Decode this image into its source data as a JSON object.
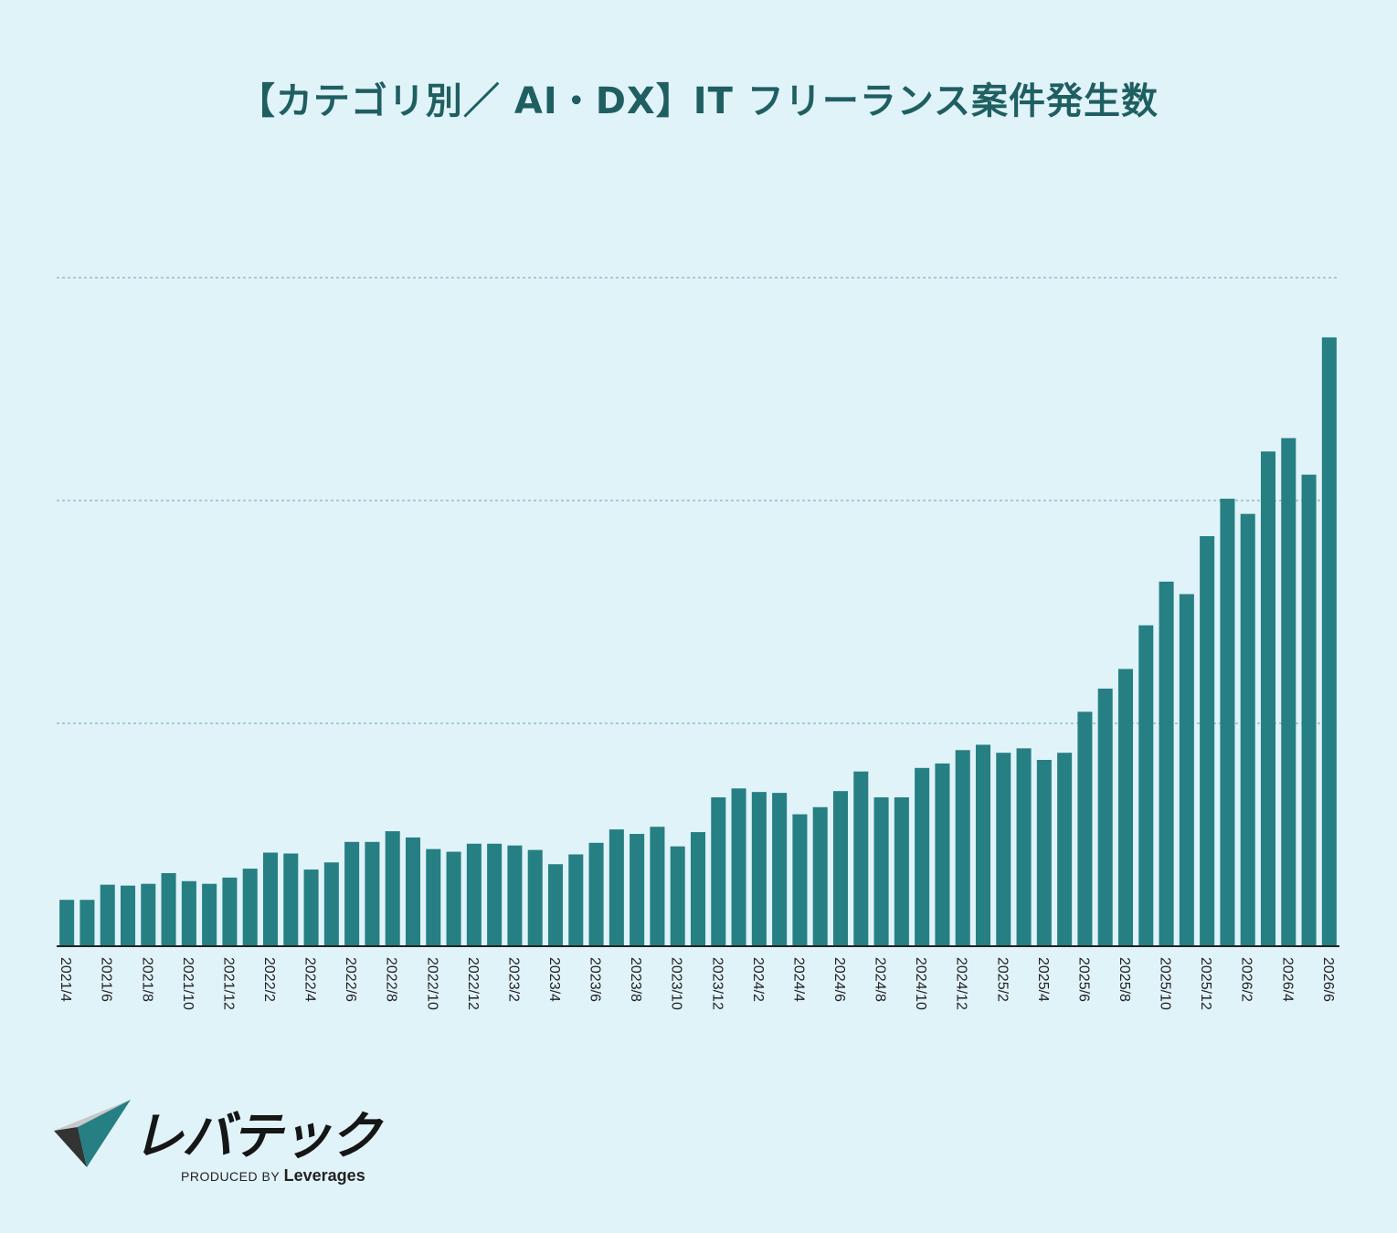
{
  "chart_data": {
    "type": "bar",
    "title": "【カテゴリ別／ AI・DX】IT フリーランス案件発生数",
    "categories": [
      "2021/4",
      "2021/5",
      "2021/6",
      "2021/7",
      "2021/8",
      "2021/9",
      "2021/10",
      "2021/11",
      "2021/12",
      "2022/1",
      "2022/2",
      "2022/3",
      "2022/4",
      "2022/5",
      "2022/6",
      "2022/7",
      "2022/8",
      "2022/9",
      "2022/10",
      "2022/11",
      "2022/12",
      "2023/1",
      "2023/2",
      "2023/3",
      "2023/4",
      "2023/5",
      "2023/6",
      "2023/7",
      "2023/8",
      "2023/9",
      "2023/10",
      "2023/11",
      "2023/12",
      "2024/1",
      "2024/2",
      "2024/3",
      "2024/4",
      "2024/5",
      "2024/6",
      "2024/7",
      "2024/8",
      "2024/9",
      "2024/10",
      "2024/11",
      "2024/12",
      "2025/1",
      "2025/2",
      "2025/3",
      "2025/4",
      "2025/5",
      "2025/6",
      "2025/7",
      "2025/8",
      "2025/9",
      "2025/10",
      "2025/11",
      "2025/12",
      "2026/1",
      "2026/2",
      "2026/3",
      "2026/4",
      "2026/5",
      "2026/6"
    ],
    "tick_labels": [
      "2021/4",
      "2021/6",
      "2021/8",
      "2021/10",
      "2021/12",
      "2022/2",
      "2022/4",
      "2022/6",
      "2022/8",
      "2022/10",
      "2022/12",
      "2023/2",
      "2023/4",
      "2023/6",
      "2023/8",
      "2023/10",
      "2023/12",
      "2024/2",
      "2024/4",
      "2024/6",
      "2024/8",
      "2024/10",
      "2024/12",
      "2025/2",
      "2025/4",
      "2025/6",
      "2025/8",
      "2025/10",
      "2025/12",
      "2026/2",
      "2026/4",
      "2026/6"
    ],
    "values": [
      20.8,
      20.8,
      27.6,
      27.2,
      28.0,
      32.8,
      29.2,
      28.0,
      30.8,
      34.8,
      42.0,
      41.6,
      34.4,
      37.6,
      46.8,
      46.8,
      51.6,
      48.8,
      43.6,
      42.4,
      46.0,
      46.0,
      45.2,
      43.2,
      36.8,
      41.2,
      46.4,
      52.4,
      50.4,
      53.6,
      44.8,
      51.2,
      66.8,
      70.8,
      69.2,
      68.8,
      59.2,
      62.4,
      69.6,
      78.4,
      66.8,
      66.8,
      80.0,
      82.0,
      88.0,
      90.4,
      86.8,
      88.8,
      83.6,
      86.8,
      105.2,
      115.6,
      124.4,
      144.0,
      163.6,
      158.0,
      184.0,
      200.8,
      194.0,
      222.0,
      228.0,
      211.6,
      273.2
    ],
    "ylim": [
      0,
      300
    ],
    "gridlines": [
      100,
      200,
      300
    ],
    "grid": "horizontal dashed",
    "xlabel": "",
    "ylabel": "",
    "y_tick_labels_shown": false,
    "colors": {
      "bar": "#267f83",
      "grid": "#7fb5b9",
      "axis": "#222222",
      "title": "#1f5f62",
      "background": "#e0f3f9"
    }
  },
  "logo": {
    "name": "レバテック",
    "produced_by": "PRODUCED BY",
    "company": "Leverages"
  }
}
